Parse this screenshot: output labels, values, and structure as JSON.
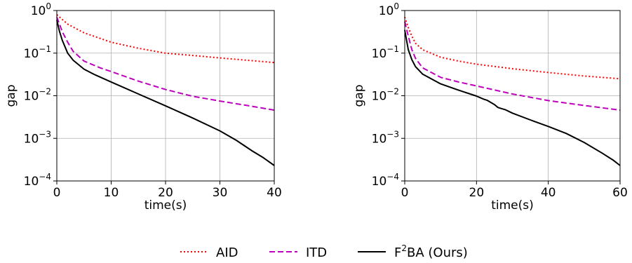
{
  "chart_data": [
    {
      "type": "line",
      "xlabel": "time(s)",
      "ylabel": "gap",
      "xlim": [
        0,
        40
      ],
      "ylim": [
        0.0001,
        1
      ],
      "yscale": "log",
      "grid": true,
      "xticks": [
        0,
        10,
        20,
        30,
        40
      ],
      "yticks": [
        {
          "value": 0.0001,
          "exp": "−4"
        },
        {
          "value": 0.001,
          "exp": "−3"
        },
        {
          "value": 0.01,
          "exp": "−2"
        },
        {
          "value": 0.1,
          "exp": "−1"
        },
        {
          "value": 1,
          "exp": "0"
        }
      ],
      "series": [
        {
          "name": "AID",
          "color": "#ff0000",
          "dash": "dotted",
          "x": [
            0,
            2,
            5,
            10,
            15,
            20,
            25,
            30,
            35,
            40
          ],
          "y": [
            0.8,
            0.48,
            0.3,
            0.18,
            0.13,
            0.1,
            0.088,
            0.077,
            0.068,
            0.06
          ]
        },
        {
          "name": "ITD",
          "color": "#bf00bf",
          "dash": "dashed",
          "x": [
            0,
            1,
            2,
            3,
            5,
            8,
            10,
            15,
            20,
            25,
            30,
            35,
            40
          ],
          "y": [
            0.7,
            0.32,
            0.18,
            0.11,
            0.065,
            0.045,
            0.037,
            0.022,
            0.014,
            0.0097,
            0.0075,
            0.0059,
            0.0046
          ]
        },
        {
          "name": "F²BA (Ours)",
          "color": "#000000",
          "dash": "solid",
          "x": [
            0,
            0.5,
            1,
            2,
            3,
            5,
            7,
            10,
            15,
            20,
            25,
            30,
            33,
            36,
            38,
            40
          ],
          "y": [
            0.6,
            0.32,
            0.2,
            0.1,
            0.068,
            0.042,
            0.031,
            0.021,
            0.011,
            0.0058,
            0.003,
            0.0015,
            0.0009,
            0.0005,
            0.00035,
            0.00023
          ]
        }
      ]
    },
    {
      "type": "line",
      "xlabel": "time(s)",
      "ylabel": "gap",
      "xlim": [
        0,
        60
      ],
      "ylim": [
        0.0001,
        1
      ],
      "yscale": "log",
      "grid": true,
      "xticks": [
        0,
        20,
        40,
        60
      ],
      "yticks": [
        {
          "value": 0.0001,
          "exp": "−4"
        },
        {
          "value": 0.001,
          "exp": "−3"
        },
        {
          "value": 0.01,
          "exp": "−2"
        },
        {
          "value": 0.1,
          "exp": "−1"
        },
        {
          "value": 1,
          "exp": "0"
        }
      ],
      "series": [
        {
          "name": "AID",
          "color": "#ff0000",
          "dash": "dotted",
          "x": [
            0,
            1,
            2,
            3,
            5,
            10,
            15,
            20,
            30,
            40,
            50,
            60
          ],
          "y": [
            0.7,
            0.4,
            0.25,
            0.17,
            0.12,
            0.08,
            0.065,
            0.055,
            0.043,
            0.035,
            0.029,
            0.025
          ]
        },
        {
          "name": "ITD",
          "color": "#bf00bf",
          "dash": "dashed",
          "x": [
            0,
            1,
            2,
            3,
            5,
            10,
            15,
            20,
            30,
            40,
            50,
            60
          ],
          "y": [
            0.55,
            0.25,
            0.12,
            0.075,
            0.045,
            0.027,
            0.021,
            0.017,
            0.011,
            0.0077,
            0.0059,
            0.0046
          ]
        },
        {
          "name": "F²BA (Ours)",
          "color": "#000000",
          "dash": "solid",
          "x": [
            0,
            0.5,
            1,
            2,
            3,
            5,
            10,
            15,
            20,
            22,
            23,
            25,
            26,
            28,
            30,
            35,
            40,
            45,
            50,
            55,
            58,
            60
          ],
          "y": [
            0.35,
            0.2,
            0.12,
            0.07,
            0.048,
            0.032,
            0.019,
            0.0135,
            0.0098,
            0.0083,
            0.0078,
            0.0062,
            0.0053,
            0.0047,
            0.0039,
            0.0027,
            0.0019,
            0.0013,
            0.0008,
            0.00045,
            0.00031,
            0.00023
          ]
        }
      ]
    }
  ],
  "legend": {
    "placement": "bottom-center",
    "items": [
      {
        "label": "AID",
        "color": "#ff0000",
        "dash": "dotted"
      },
      {
        "label": "ITD",
        "color": "#bf00bf",
        "dash": "dashed"
      },
      {
        "label_main": "F",
        "label_sup": "2",
        "label_rest": "BA (Ours)",
        "color": "#000000",
        "dash": "solid"
      }
    ]
  }
}
